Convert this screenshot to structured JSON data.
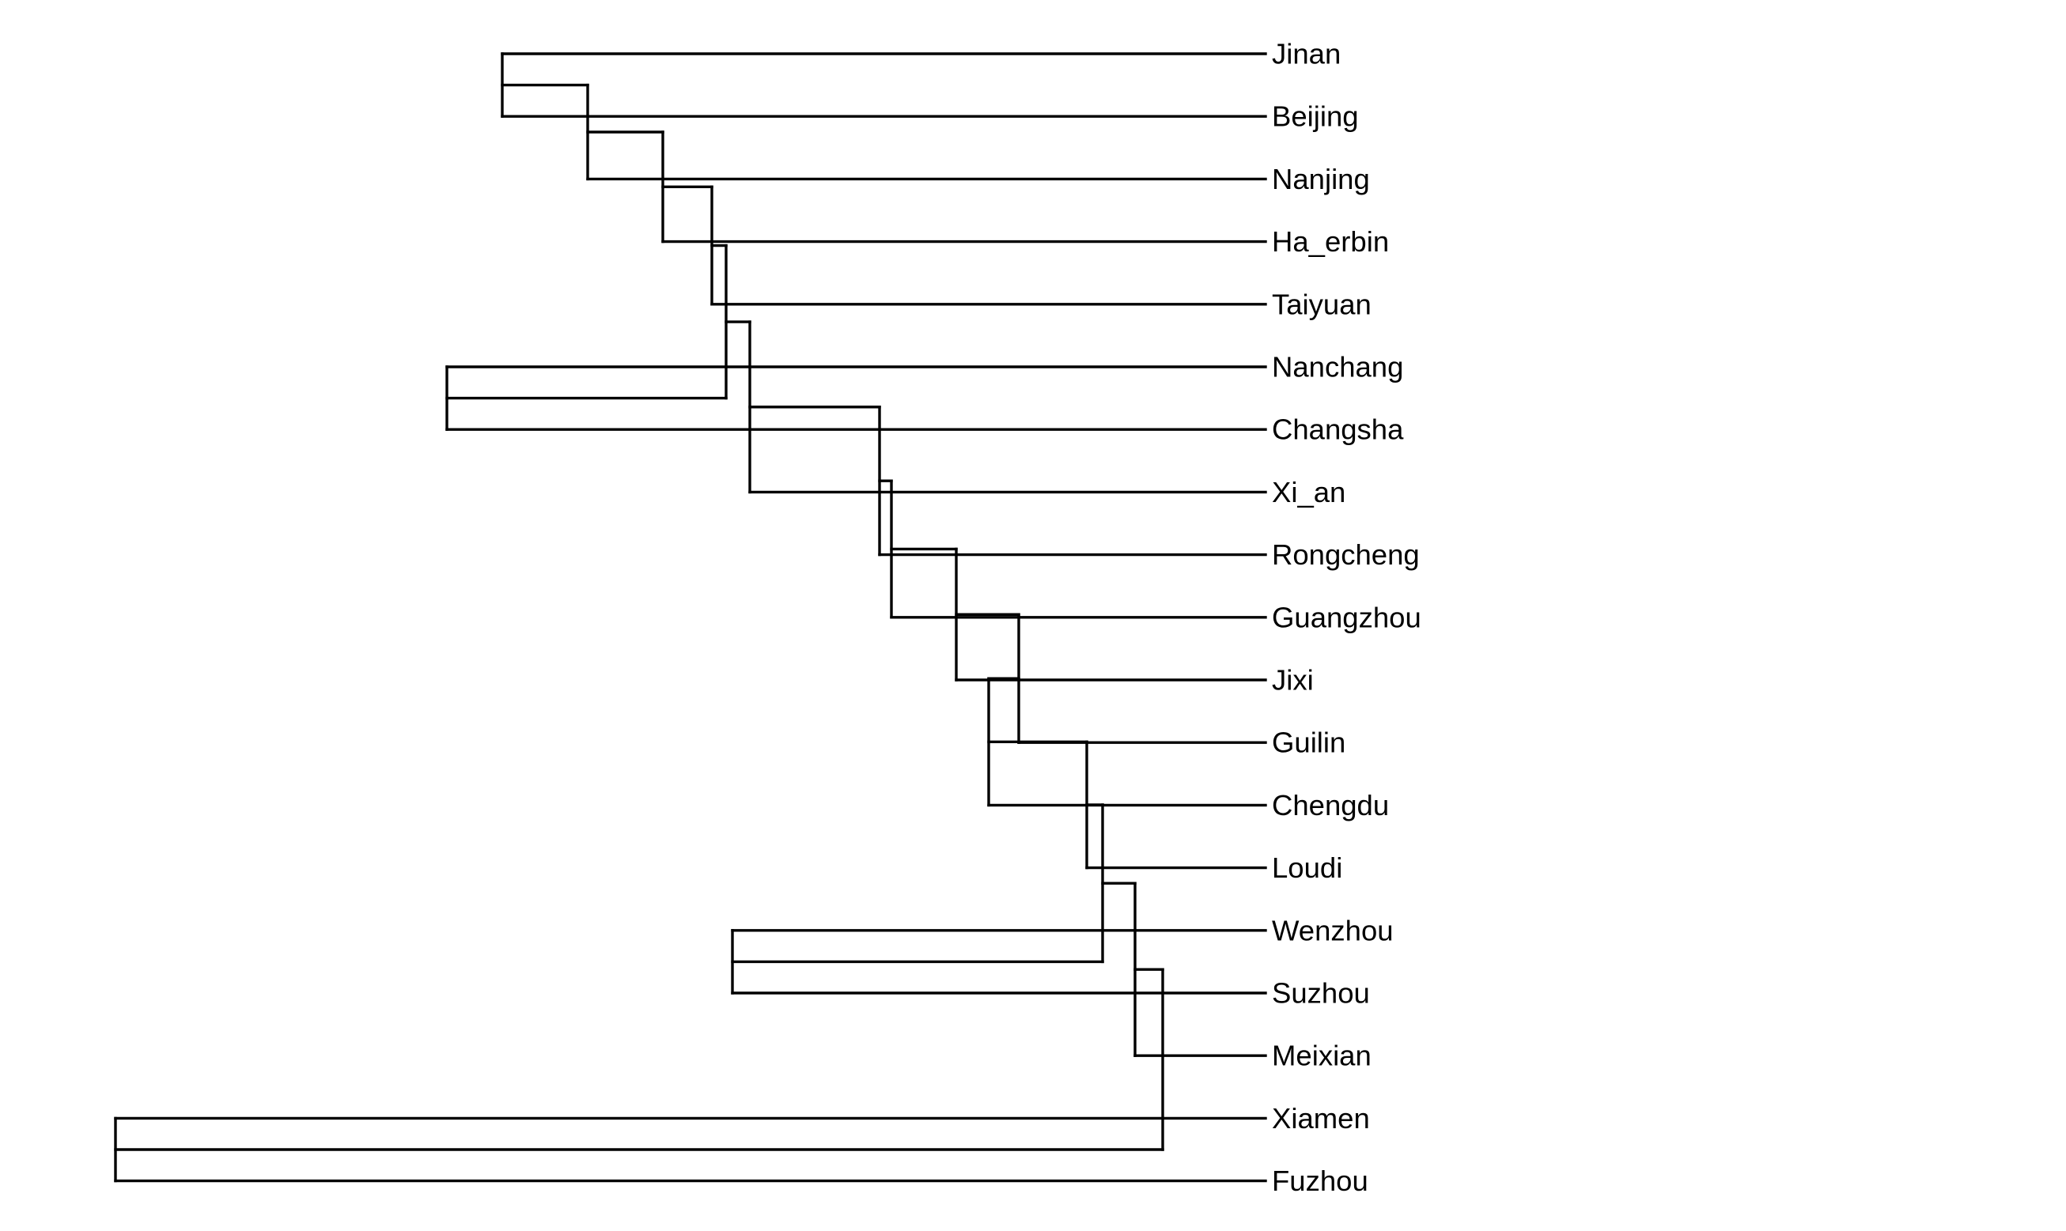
{
  "diagram": {
    "type": "dendrogram",
    "orientation": "left-to-right",
    "line_color": "#000000",
    "background": "#ffffff",
    "leaves": [
      "Jinan",
      "Beijing",
      "Nanjing",
      "Ha_erbin",
      "Taiyuan",
      "Nanchang",
      "Changsha",
      "Xi_an",
      "Rongcheng",
      "Guangzhou",
      "Jixi",
      "Guilin",
      "Chengdu",
      "Loudi",
      "Wenzhou",
      "Suzhou",
      "Meixian",
      "Xiamen",
      "Fuzhou"
    ],
    "tree": [
      [
        [
          [
            [
              [
                [
                  [
                    [
                      [
                        [
                          [
                            [
                              [
                                [
                                  "Jinan",
                                  "Beijing"
                                ],
                                "Nanjing"
                              ],
                              "Ha_erbin"
                            ],
                            "Taiyuan"
                          ],
                          [
                            "Nanchang",
                            "Changsha"
                          ]
                        ],
                        "Xi_an"
                      ],
                      "Rongcheng"
                    ],
                    "Guangzhou"
                  ],
                  "Jixi"
                ],
                "Guilin"
              ],
              "Chengdu"
            ],
            "Loudi"
          ],
          [
            "Wenzhou",
            "Suzhou"
          ]
        ],
        "Meixian"
      ],
      [
        "Xiamen",
        "Fuzhou"
      ]
    ]
  }
}
